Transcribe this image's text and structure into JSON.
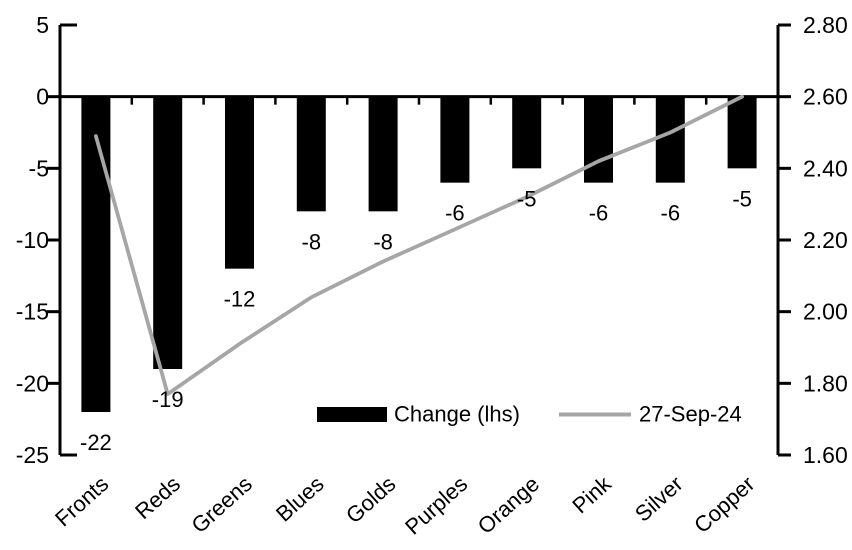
{
  "chart_data": {
    "type": "bar",
    "title": "",
    "categories": [
      "Fronts",
      "Reds",
      "Greens",
      "Blues",
      "Golds",
      "Purples",
      "Orange",
      "Pink",
      "Silver",
      "Copper"
    ],
    "series": [
      {
        "name": "Change (lhs)",
        "type": "bar",
        "axis": "left",
        "color": "#000000",
        "values": [
          -22,
          -19,
          -12,
          -8,
          -8,
          -6,
          -5,
          -6,
          -6,
          -5
        ],
        "data_labels": [
          "-22",
          "-19",
          "-12",
          "-8",
          "-8",
          "-6",
          "-5",
          "-6",
          "-6",
          "-5"
        ]
      },
      {
        "name": "27-Sep-24",
        "type": "line",
        "axis": "right",
        "color": "#a6a6a6",
        "values": [
          2.49,
          1.77,
          1.91,
          2.04,
          2.14,
          2.23,
          2.32,
          2.42,
          2.5,
          2.6
        ]
      }
    ],
    "left_axis": {
      "ticks": [
        "5",
        "0",
        "-5",
        "-10",
        "-15",
        "-20",
        "-25"
      ],
      "max": 5,
      "min": -25
    },
    "right_axis": {
      "ticks": [
        "2.80",
        "2.60",
        "2.40",
        "2.20",
        "2.00",
        "1.80",
        "1.60"
      ],
      "max": 2.8,
      "min": 1.6
    },
    "legend": {
      "position": "inside-bottom",
      "items": [
        {
          "label": "Change (lhs)",
          "swatch": "bar"
        },
        {
          "label": "27-Sep-24",
          "swatch": "line"
        }
      ]
    },
    "grid": false,
    "colors": {
      "bar": "#000000",
      "line": "#a6a6a6",
      "text": "#000000",
      "background": "#ffffff"
    }
  }
}
